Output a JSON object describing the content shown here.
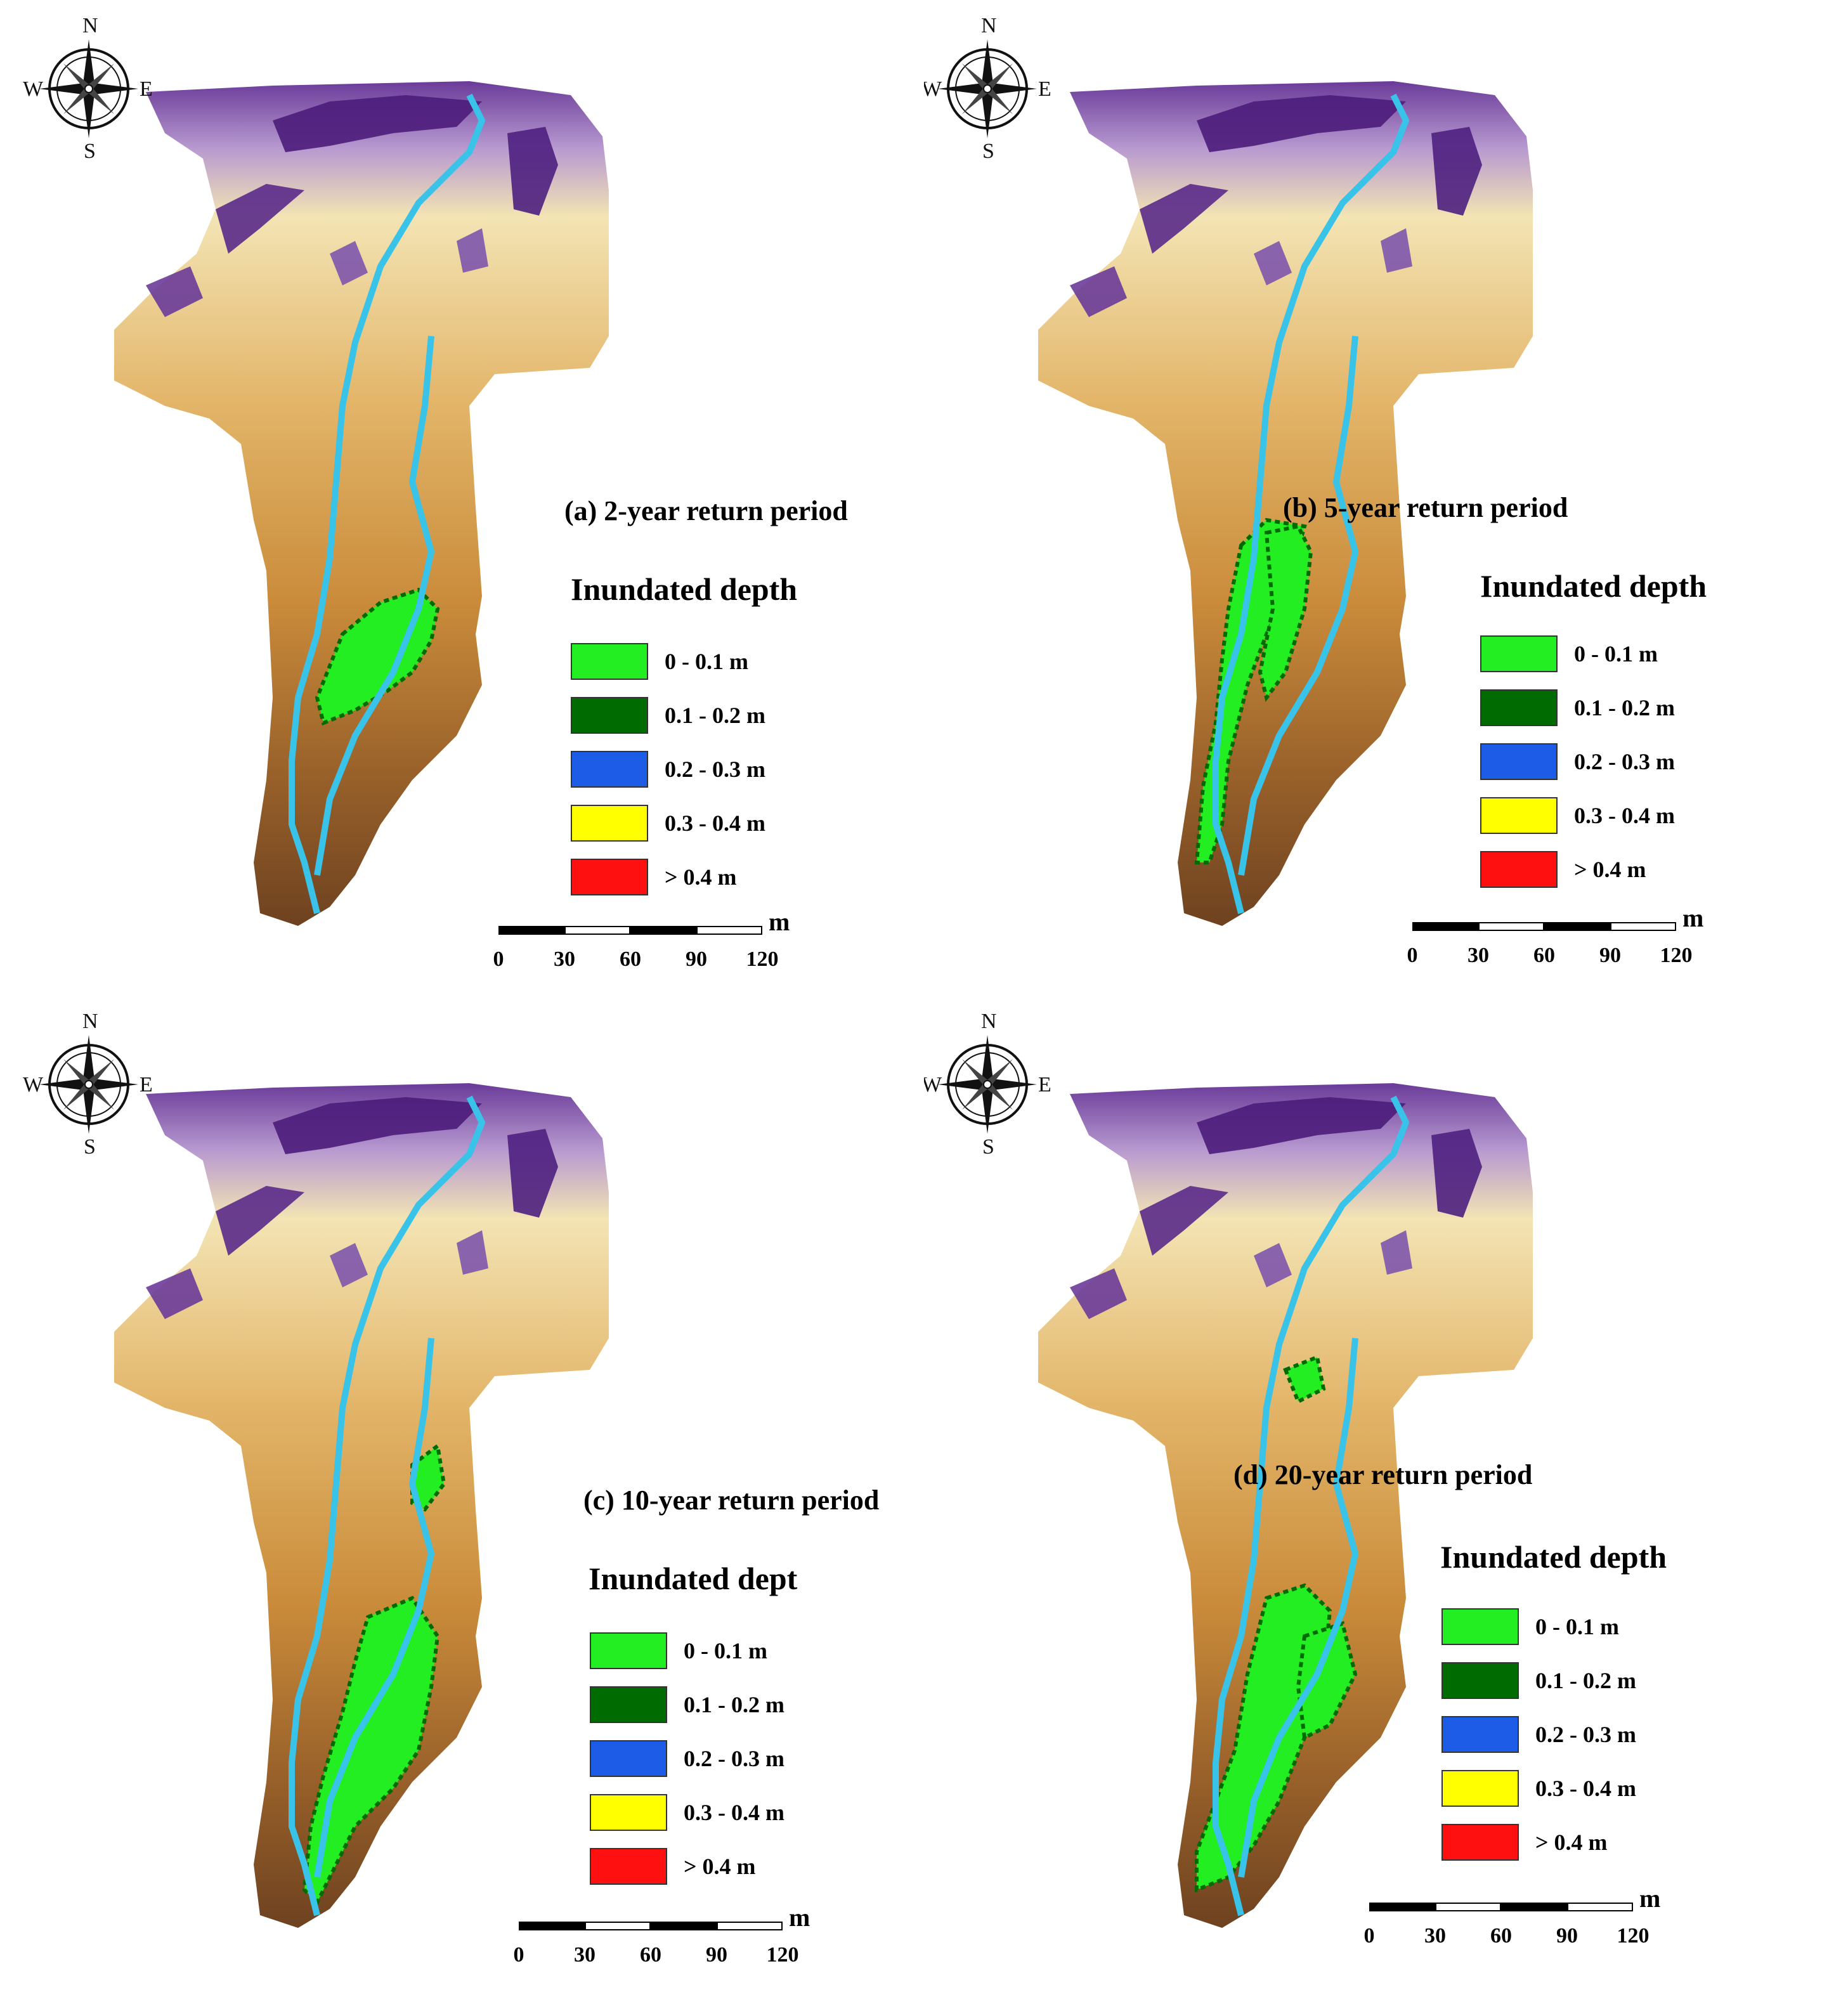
{
  "compass": {
    "n": "N",
    "s": "S",
    "e": "E",
    "w": "W"
  },
  "colors": {
    "river": "#39c3e8",
    "class1": "#22ee22",
    "class2": "#006b00",
    "class3": "#1c5ce6",
    "class4": "#ffff00",
    "class5": "#ff1010"
  },
  "scalebar": {
    "unit": "m",
    "ticks": [
      "0",
      "30",
      "60",
      "90",
      "120"
    ]
  },
  "panels": [
    {
      "title": "(a) 2-year return period",
      "legend_title": "Inundated depth",
      "legend": [
        {
          "label": "0 - 0.1 m",
          "color": "#22ee22"
        },
        {
          "label": "0.1 - 0.2 m",
          "color": "#006b00"
        },
        {
          "label": "0.2 - 0.3 m",
          "color": "#1c5ce6"
        },
        {
          "label": "0.3 - 0.4 m",
          "color": "#ffff00"
        },
        {
          "label": "> 0.4 m",
          "color": "#ff1010"
        }
      ]
    },
    {
      "title": "(b) 5-year return period",
      "legend_title": "Inundated depth",
      "legend": [
        {
          "label": "0 - 0.1 m",
          "color": "#22ee22"
        },
        {
          "label": "0.1 - 0.2 m",
          "color": "#006b00"
        },
        {
          "label": "0.2 - 0.3 m",
          "color": "#1c5ce6"
        },
        {
          "label": "0.3 - 0.4 m",
          "color": "#ffff00"
        },
        {
          "label": "> 0.4 m",
          "color": "#ff1010"
        }
      ]
    },
    {
      "title": "(c) 10-year return period",
      "legend_title": "Inundated dept",
      "legend": [
        {
          "label": "0 - 0.1 m",
          "color": "#22ee22"
        },
        {
          "label": "0.1 - 0.2 m",
          "color": "#006b00"
        },
        {
          "label": "0.2 - 0.3 m",
          "color": "#1c5ce6"
        },
        {
          "label": "0.3 - 0.4 m",
          "color": "#ffff00"
        },
        {
          "label": "> 0.4 m",
          "color": "#ff1010"
        }
      ]
    },
    {
      "title": "(d) 20-year return period",
      "legend_title": "Inundated depth",
      "legend": [
        {
          "label": "0 - 0.1 m",
          "color": "#22ee22"
        },
        {
          "label": "0.1 - 0.2 m",
          "color": "#006b00"
        },
        {
          "label": "0.2 - 0.3 m",
          "color": "#1c5ce6"
        },
        {
          "label": "0.3 - 0.4 m",
          "color": "#ffff00"
        },
        {
          "label": "> 0.4 m",
          "color": "#ff1010"
        }
      ]
    }
  ]
}
